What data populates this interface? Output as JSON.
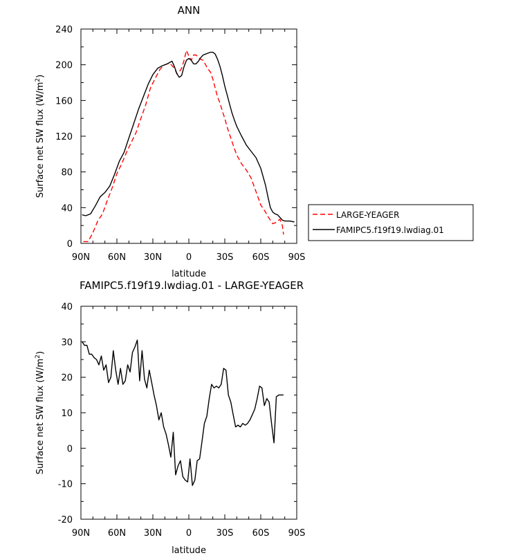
{
  "chart_data": [
    {
      "type": "line",
      "title": "ANN",
      "xlabel": "latitude",
      "ylabel": "Surface net SW flux (W/m²)",
      "ylabel_main": "Surface net SW flux (W/m",
      "ylabel_sup": "2",
      "ylabel_end": ")",
      "xlim": [
        90,
        -90
      ],
      "ylim": [
        0,
        240
      ],
      "xticks": [
        90,
        60,
        30,
        0,
        -30,
        -60,
        -90
      ],
      "xtick_labels": [
        "90N",
        "60N",
        "30N",
        "0",
        "30S",
        "60S",
        "90S"
      ],
      "yticks": [
        0,
        40,
        80,
        120,
        160,
        200,
        240
      ],
      "ytick_labels": [
        "0",
        "40",
        "80",
        "120",
        "160",
        "200",
        "240"
      ],
      "legend": "right",
      "series": [
        {
          "name": "LARGE-YEAGER",
          "color": "#ff0000",
          "dash": "dashed",
          "x": [
            88,
            84,
            80,
            76,
            72,
            68,
            64,
            60,
            56,
            52,
            48,
            44,
            40,
            36,
            32,
            28,
            24,
            20,
            16,
            12,
            10,
            8,
            6,
            4,
            2,
            0,
            -2,
            -4,
            -6,
            -8,
            -10,
            -12,
            -14,
            -16,
            -18,
            -20,
            -22,
            -24,
            -26,
            -28,
            -30,
            -32,
            -34,
            -36,
            -38,
            -40,
            -44,
            -48,
            -52,
            -56,
            -60,
            -64,
            -66,
            -68,
            -70,
            -72,
            -74,
            -76,
            -78,
            -79
          ],
          "values": [
            2,
            2,
            12,
            25,
            33,
            48,
            62,
            78,
            89,
            102,
            113,
            124,
            140,
            155,
            174,
            185,
            195,
            200,
            202,
            196,
            190,
            192,
            196,
            205,
            216,
            210,
            205,
            211,
            211,
            208,
            206,
            205,
            200,
            195,
            192,
            184,
            174,
            164,
            157,
            148,
            140,
            130,
            122,
            114,
            106,
            99,
            89,
            82,
            73,
            58,
            43,
            35,
            30,
            26,
            22,
            23,
            25,
            27,
            20,
            10
          ]
        },
        {
          "name": "FAMIPC5.f19f19.lwdiag.01",
          "color": "#000000",
          "dash": "solid",
          "x": [
            89,
            86,
            82,
            78,
            74,
            70,
            66,
            62,
            58,
            54,
            50,
            46,
            42,
            38,
            34,
            30,
            26,
            22,
            18,
            14,
            12,
            10,
            8,
            6,
            4,
            2,
            0,
            -2,
            -4,
            -6,
            -8,
            -10,
            -12,
            -14,
            -16,
            -18,
            -20,
            -22,
            -24,
            -26,
            -28,
            -30,
            -32,
            -34,
            -36,
            -38,
            -40,
            -44,
            -48,
            -52,
            -56,
            -60,
            -64,
            -66,
            -68,
            -70,
            -72,
            -74,
            -76,
            -78,
            -80,
            -84,
            -88
          ],
          "values": [
            32,
            31,
            33,
            42,
            52,
            57,
            64,
            77,
            92,
            102,
            118,
            134,
            150,
            164,
            178,
            189,
            196,
            199,
            201,
            204,
            198,
            190,
            186,
            188,
            198,
            205,
            207,
            205,
            201,
            201,
            204,
            208,
            211,
            212,
            213,
            214,
            214,
            212,
            206,
            198,
            188,
            176,
            166,
            156,
            146,
            138,
            131,
            120,
            110,
            103,
            96,
            84,
            65,
            52,
            40,
            35,
            33,
            32,
            29,
            26,
            25,
            25,
            24
          ]
        }
      ]
    },
    {
      "type": "line",
      "title": "FAMIPC5.f19f19.lwdiag.01 - LARGE-YEAGER",
      "xlabel": "latitude",
      "ylabel": "Surface net SW flux (W/m²)",
      "ylabel_main": "Surface net SW flux (W/m",
      "ylabel_sup": "2",
      "ylabel_end": ")",
      "xlim": [
        90,
        -90
      ],
      "ylim": [
        -20,
        40
      ],
      "xticks": [
        90,
        60,
        30,
        0,
        -30,
        -60,
        -90
      ],
      "xtick_labels": [
        "90N",
        "60N",
        "30N",
        "0",
        "30S",
        "60S",
        "90S"
      ],
      "yticks": [
        -20,
        -10,
        0,
        10,
        20,
        30,
        40
      ],
      "ytick_labels": [
        "-20",
        "-10",
        "0",
        "10",
        "20",
        "30",
        "40"
      ],
      "series": [
        {
          "name": "",
          "color": "#000000",
          "dash": "solid",
          "x": [
            89,
            87,
            85,
            83,
            81,
            79,
            77,
            75,
            73,
            71,
            69,
            67,
            65,
            63,
            61,
            59,
            57,
            55,
            53,
            51,
            49,
            47,
            45,
            43,
            41,
            39,
            37,
            35,
            33,
            31,
            29,
            27,
            25,
            23,
            21,
            19,
            17,
            15,
            13,
            11,
            9,
            7,
            5,
            3,
            1,
            -1,
            -3,
            -5,
            -7,
            -9,
            -11,
            -13,
            -15,
            -17,
            -19,
            -21,
            -23,
            -25,
            -27,
            -29,
            -31,
            -33,
            -35,
            -37,
            -39,
            -41,
            -43,
            -45,
            -47,
            -49,
            -51,
            -53,
            -55,
            -57,
            -59,
            -61,
            -63,
            -65,
            -67,
            -69,
            -71,
            -73,
            -75,
            -77,
            -79
          ],
          "values": [
            30,
            29,
            29,
            26.5,
            26.5,
            25.5,
            25,
            23.5,
            26,
            22,
            23.5,
            18.5,
            20,
            27.5,
            22,
            18,
            22.5,
            18,
            19,
            23.5,
            21.5,
            27,
            28.5,
            30.5,
            19,
            27.5,
            19.5,
            17,
            22,
            18.5,
            15,
            12,
            8,
            10,
            6,
            4,
            1,
            -2.5,
            4.5,
            -7.5,
            -5,
            -3.5,
            -8,
            -9,
            -9.5,
            -3,
            -10.5,
            -9,
            -3.5,
            -3,
            2,
            7,
            9,
            14,
            18,
            17,
            17.5,
            17,
            18,
            22.5,
            22,
            15,
            13,
            9.5,
            6,
            6.5,
            6,
            7,
            6.5,
            7,
            8,
            9.5,
            11,
            14,
            17.5,
            17,
            12,
            14,
            13,
            7,
            1.5,
            14.5,
            15,
            15,
            15
          ]
        }
      ]
    }
  ]
}
